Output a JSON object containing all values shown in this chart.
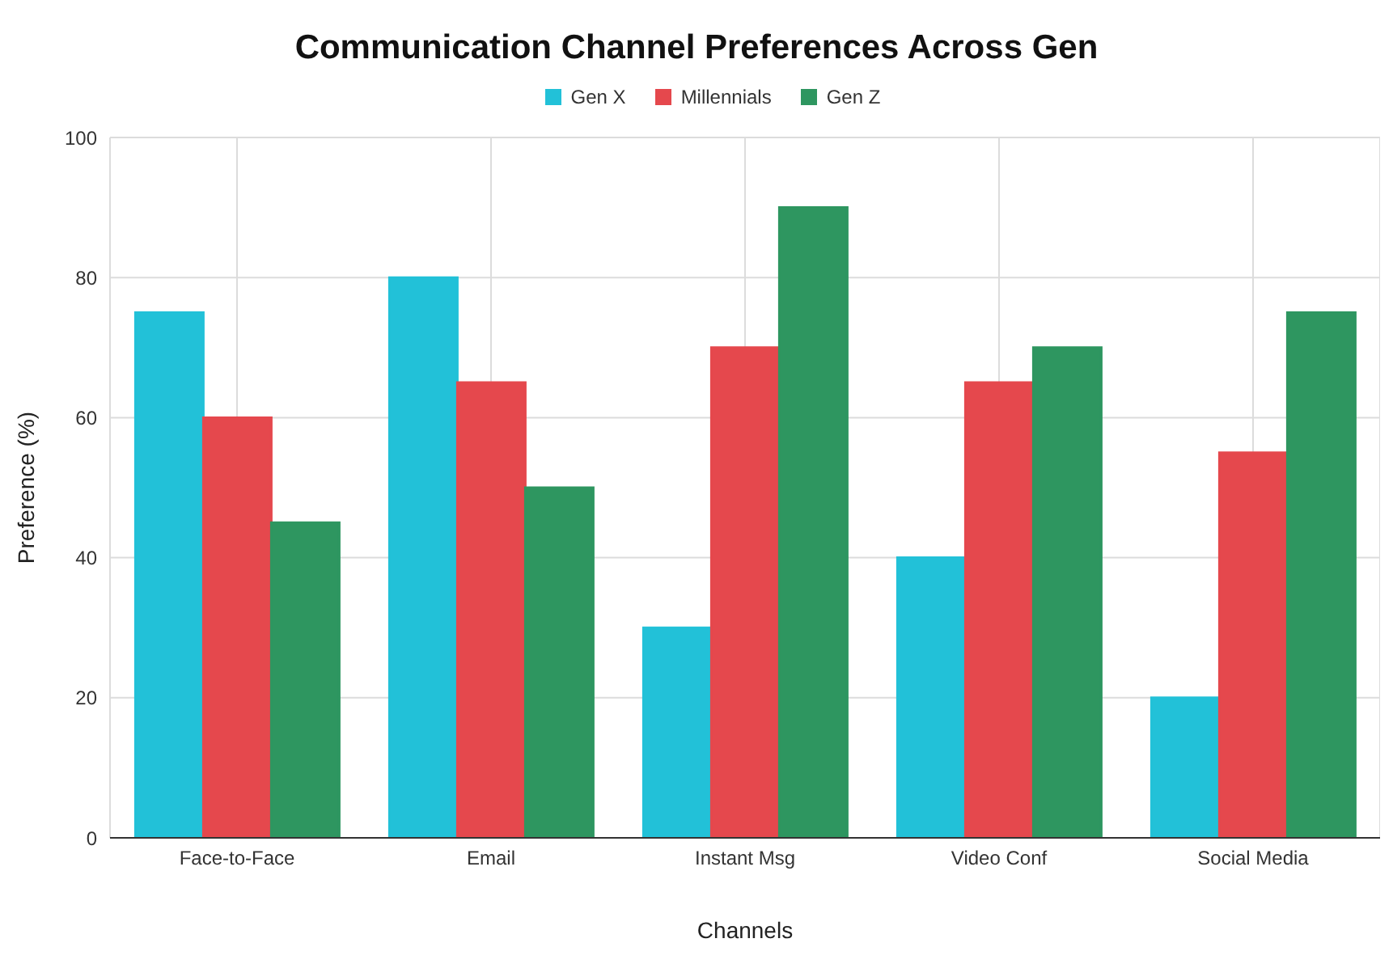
{
  "chart_data": {
    "type": "bar",
    "title": "Communication Channel Preferences Across Gen",
    "xlabel": "Channels",
    "ylabel": "Preference (%)",
    "categories": [
      "Face-to-Face",
      "Email",
      "Instant Msg",
      "Video Conf",
      "Social Media"
    ],
    "series": [
      {
        "name": "Gen X",
        "color": "#22c1d8",
        "values": [
          75,
          80,
          30,
          40,
          20
        ]
      },
      {
        "name": "Millennials",
        "color": "#e5484d",
        "values": [
          60,
          65,
          70,
          65,
          55
        ]
      },
      {
        "name": "Gen Z",
        "color": "#2e9660",
        "values": [
          45,
          50,
          90,
          70,
          75
        ]
      }
    ],
    "ylim": [
      0,
      100
    ],
    "yticks": [
      0,
      20,
      40,
      60,
      80,
      100
    ],
    "grid": true,
    "legend": "top"
  }
}
